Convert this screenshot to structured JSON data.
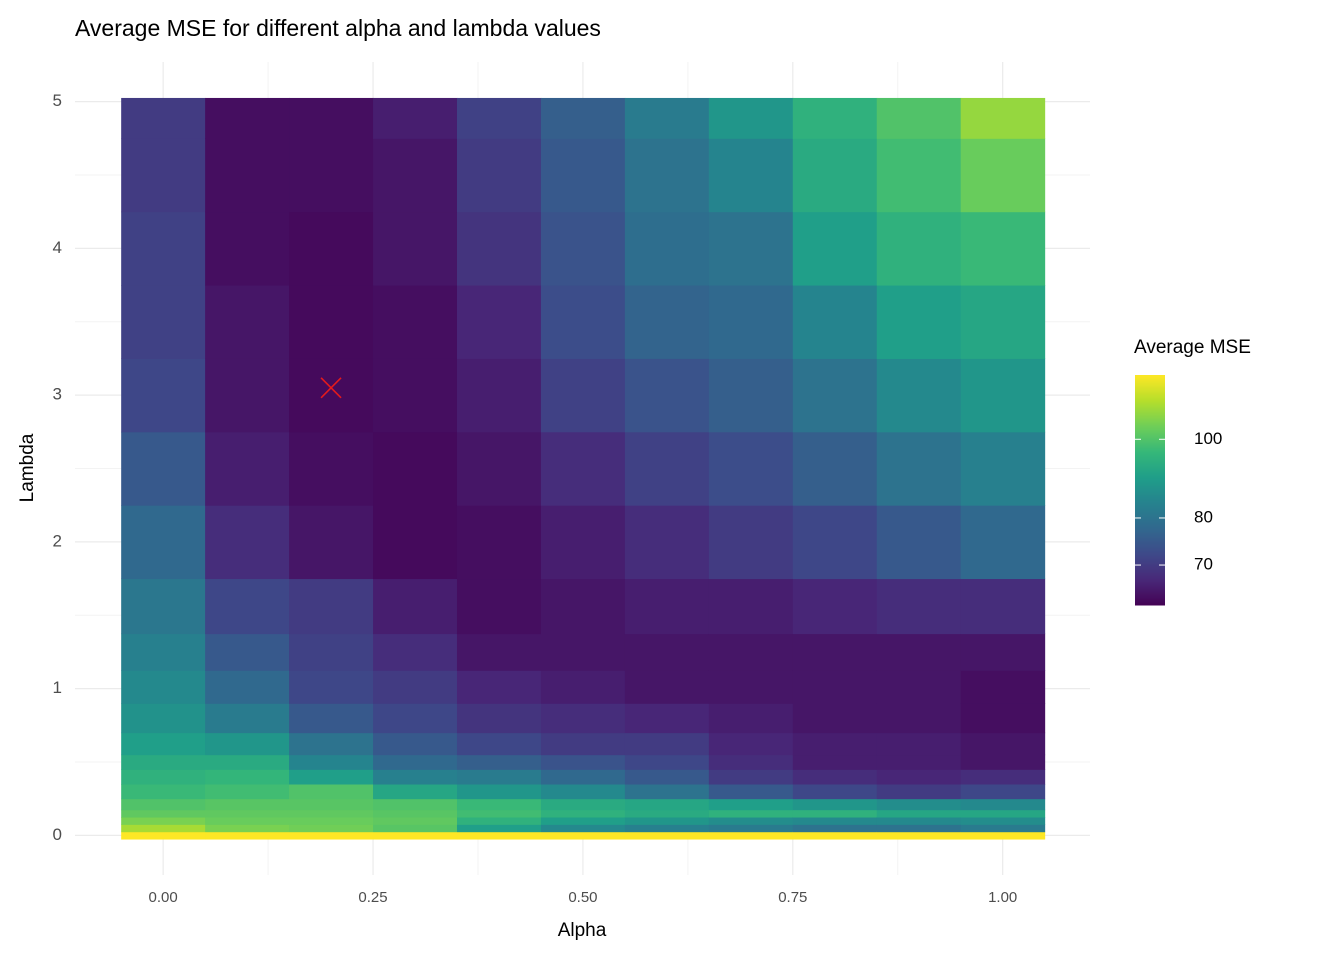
{
  "chart_data": {
    "type": "heatmap",
    "title": "Average MSE for different alpha and lambda values",
    "x_label": "Alpha",
    "y_label": "Lambda",
    "legend_title": "Average MSE",
    "x": [
      0,
      0.1,
      0.2,
      0.3,
      0.4,
      0.5,
      0.6,
      0.7,
      0.8,
      0.9,
      1.0
    ],
    "y": [
      0,
      0.05,
      0.1,
      0.15,
      0.2,
      0.3,
      0.4,
      0.5,
      0.6,
      0.8,
      1,
      1.25,
      1.5,
      2,
      2.5,
      3,
      3.5,
      4,
      4.5,
      5
    ],
    "values": [
      [
        120,
        110,
        105,
        102,
        100,
        97,
        95,
        93,
        90,
        87,
        85,
        83,
        81,
        78,
        75,
        72,
        71,
        71,
        70,
        70
      ],
      [
        120,
        105,
        103,
        102,
        101,
        98,
        96,
        93,
        88,
        82,
        78,
        75,
        72,
        68,
        66,
        65,
        65,
        64,
        64,
        64
      ],
      [
        120,
        104,
        103,
        102,
        101,
        100,
        90,
        84,
        80,
        75,
        72,
        71,
        70,
        65,
        64,
        63.5,
        63.5,
        63.5,
        64,
        64
      ],
      [
        120,
        101,
        102,
        101,
        100,
        92,
        83,
        78,
        75,
        72,
        70,
        68,
        66,
        63.5,
        63.5,
        64,
        64,
        65,
        65,
        66
      ],
      [
        120,
        90,
        95,
        98,
        97,
        88,
        82,
        76,
        72,
        69,
        67,
        65,
        64,
        64,
        65,
        66,
        67,
        69,
        70,
        71
      ],
      [
        120,
        85,
        90,
        95,
        93,
        85,
        78,
        74,
        70,
        68,
        66,
        65,
        65,
        66,
        68,
        71,
        73,
        74,
        75,
        76
      ],
      [
        120,
        83,
        88,
        93,
        92,
        80,
        75,
        72,
        70,
        67,
        65,
        65,
        66,
        68,
        71,
        74,
        77,
        79,
        80,
        82
      ],
      [
        120,
        82,
        86,
        95,
        90,
        75,
        70,
        68,
        67,
        66,
        65,
        65,
        66,
        70,
        73,
        76,
        78,
        80,
        84,
        88
      ],
      [
        120,
        80,
        85,
        95,
        88,
        72,
        68,
        66,
        66,
        65,
        65,
        65,
        67,
        72,
        76,
        80,
        84,
        90,
        93,
        95
      ],
      [
        120,
        80,
        85,
        92,
        86,
        70,
        67,
        66,
        66,
        65,
        65,
        65,
        68,
        75,
        80,
        85,
        90,
        95,
        98,
        100
      ],
      [
        120,
        82,
        86,
        92,
        85,
        72,
        68,
        65,
        65,
        64,
        64,
        65,
        68,
        78,
        83,
        88,
        92,
        97,
        103,
        108
      ]
    ],
    "xlim": [
      -0.105,
      1.104
    ],
    "ylim": [
      -0.27,
      5.27
    ],
    "xticks": [
      {
        "value": 0,
        "label": "0.00"
      },
      {
        "value": 0.25,
        "label": "0.25"
      },
      {
        "value": 0.5,
        "label": "0.50"
      },
      {
        "value": 0.75,
        "label": "0.75"
      },
      {
        "value": 1,
        "label": "1.00"
      }
    ],
    "yticks": [
      0,
      1,
      2,
      3,
      4,
      5
    ],
    "color_scale": "log",
    "colormap": "viridis",
    "clim": [
      62.5,
      120
    ],
    "cticks": [
      70,
      80,
      100
    ],
    "grid": true,
    "min_point": {
      "x": 0.2,
      "y": 3.05,
      "color": "#e41a1c"
    }
  }
}
